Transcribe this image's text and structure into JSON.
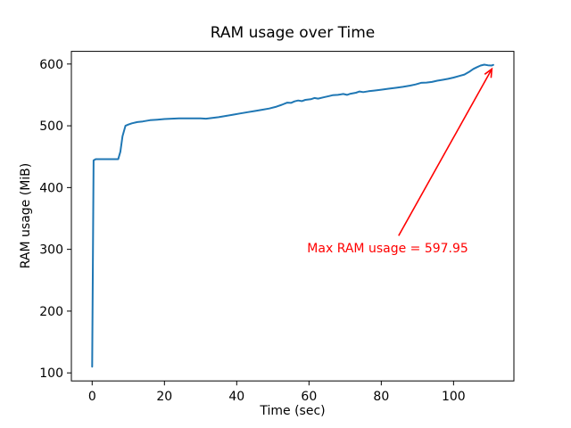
{
  "colors": {
    "background": "#ffffff",
    "spine": "#000000",
    "tick_label": "#000000",
    "line": "#1f77b4",
    "annotation": "#ff0000"
  },
  "chart_data": {
    "type": "line",
    "title": "RAM usage over Time",
    "xlabel": "Time (sec)",
    "ylabel": "RAM usage (MiB)",
    "xlim": [
      -5.75,
      116.7
    ],
    "ylim": [
      87,
      620.5
    ],
    "xticks": [
      0,
      20,
      40,
      60,
      80,
      100
    ],
    "yticks": [
      100,
      200,
      300,
      400,
      500,
      600
    ],
    "grid": false,
    "legend": null,
    "max_value": 597.95,
    "series": [
      {
        "name": "RAM usage",
        "color": "#1f77b4",
        "points": [
          [
            0,
            110
          ],
          [
            0.4,
            444
          ],
          [
            1,
            446
          ],
          [
            7.2,
            446
          ],
          [
            7.8,
            458
          ],
          [
            8.4,
            483
          ],
          [
            9.2,
            500
          ],
          [
            10,
            502
          ],
          [
            11,
            504
          ],
          [
            12.5,
            506
          ],
          [
            14,
            507
          ],
          [
            16,
            509
          ],
          [
            18,
            510
          ],
          [
            20,
            511
          ],
          [
            22,
            511.5
          ],
          [
            24,
            512
          ],
          [
            27,
            512
          ],
          [
            30,
            512
          ],
          [
            31.5,
            511.5
          ],
          [
            33,
            512.5
          ],
          [
            35,
            514
          ],
          [
            37,
            516
          ],
          [
            39,
            518
          ],
          [
            41,
            520
          ],
          [
            43,
            522
          ],
          [
            45,
            524
          ],
          [
            47,
            526
          ],
          [
            49,
            528
          ],
          [
            51,
            531
          ],
          [
            52.5,
            534
          ],
          [
            54,
            537.5
          ],
          [
            55,
            537
          ],
          [
            56,
            539.5
          ],
          [
            57,
            541
          ],
          [
            58,
            540
          ],
          [
            59,
            542
          ],
          [
            60.5,
            543
          ],
          [
            61.5,
            545
          ],
          [
            62.5,
            544
          ],
          [
            64,
            546
          ],
          [
            65.5,
            548
          ],
          [
            66.5,
            549.5
          ],
          [
            68,
            550
          ],
          [
            69.5,
            551.5
          ],
          [
            70.5,
            550
          ],
          [
            71.5,
            552
          ],
          [
            73,
            553.5
          ],
          [
            74,
            555.5
          ],
          [
            75,
            554.5
          ],
          [
            76.5,
            556
          ],
          [
            78,
            557
          ],
          [
            80,
            558.5
          ],
          [
            82,
            560
          ],
          [
            84,
            561.5
          ],
          [
            86,
            563
          ],
          [
            88,
            565
          ],
          [
            89.5,
            567
          ],
          [
            91,
            569.5
          ],
          [
            92.5,
            570
          ],
          [
            94,
            571
          ],
          [
            95.5,
            573
          ],
          [
            97,
            574.5
          ],
          [
            98.5,
            576
          ],
          [
            100,
            578
          ],
          [
            101.5,
            580.5
          ],
          [
            103,
            583
          ],
          [
            104.5,
            588
          ],
          [
            105.5,
            592
          ],
          [
            106.5,
            595
          ],
          [
            107.5,
            597.5
          ],
          [
            108.5,
            599
          ],
          [
            109.5,
            598
          ],
          [
            110.5,
            597.5
          ],
          [
            111,
            598.5
          ]
        ]
      }
    ],
    "annotation": {
      "text": "Max RAM usage = 597.95",
      "color": "#ff0000",
      "text_pos": [
        59.5,
        292
      ],
      "arrow_tail": [
        84.8,
        322
      ],
      "arrow_tip": [
        110.6,
        592
      ]
    }
  }
}
